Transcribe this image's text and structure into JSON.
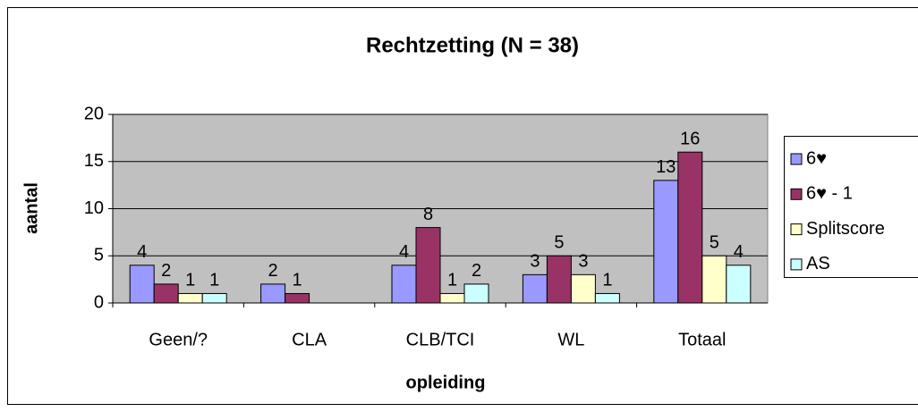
{
  "chart_data": {
    "type": "bar",
    "title": "Rechtzetting (N = 38)",
    "x_label": "opleiding",
    "y_label": "aantal",
    "categories": [
      "Geen/?",
      "CLA",
      "CLB/TCI",
      "WL",
      "Totaal"
    ],
    "series": [
      {
        "name": "6♥",
        "color": "#9999FF",
        "values": [
          4,
          2,
          4,
          3,
          13
        ]
      },
      {
        "name": "6♥ - 1",
        "color": "#993366",
        "values": [
          2,
          1,
          8,
          5,
          16
        ]
      },
      {
        "name": "Splitscore",
        "color": "#FFFFCC",
        "values": [
          1,
          null,
          1,
          3,
          5
        ]
      },
      {
        "name": "AS",
        "color": "#CCFFFF",
        "values": [
          1,
          null,
          2,
          1,
          4
        ]
      }
    ],
    "ylim": [
      0,
      20
    ],
    "yticks": [
      0,
      5,
      10,
      15,
      20
    ],
    "grid": true,
    "legend": "right"
  }
}
